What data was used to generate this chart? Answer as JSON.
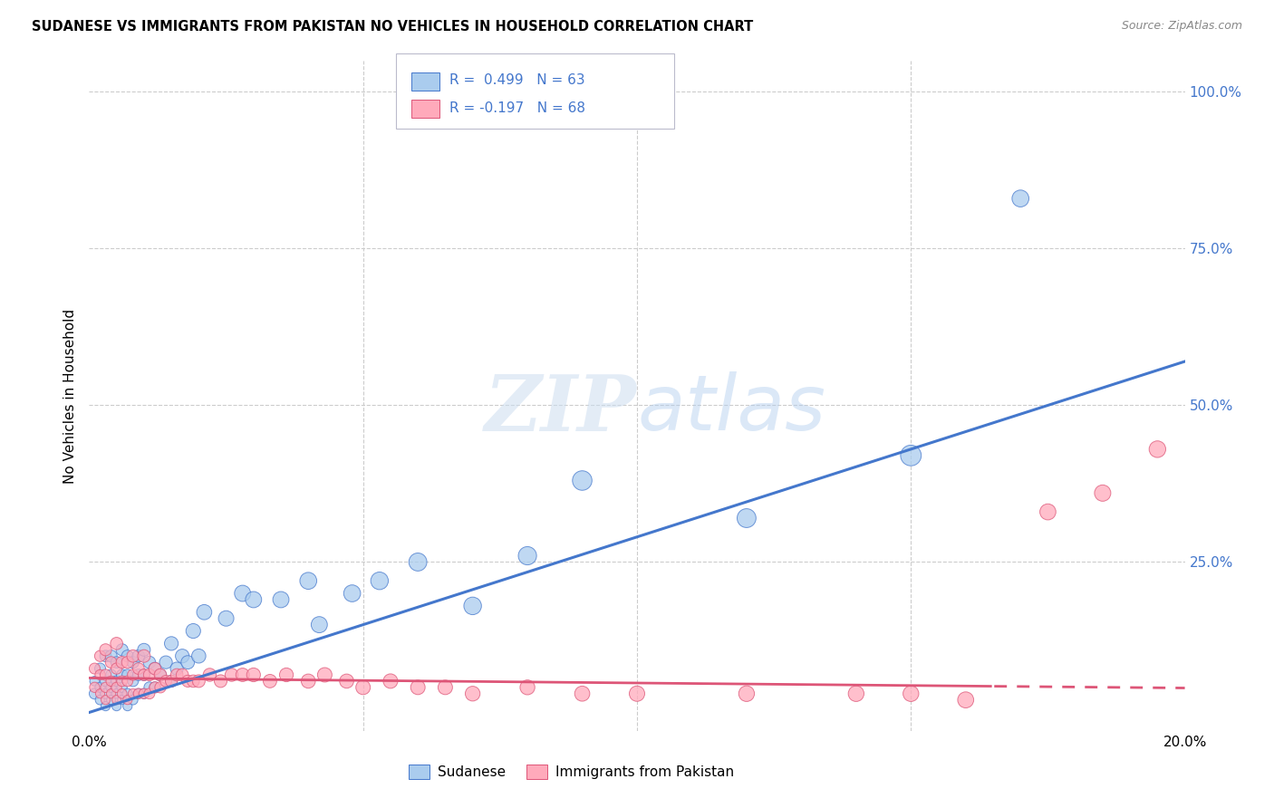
{
  "title": "SUDANESE VS IMMIGRANTS FROM PAKISTAN NO VEHICLES IN HOUSEHOLD CORRELATION CHART",
  "source": "Source: ZipAtlas.com",
  "ylabel": "No Vehicles in Household",
  "xlim": [
    0.0,
    0.2
  ],
  "ylim": [
    -0.02,
    1.05
  ],
  "grid_color": "#cccccc",
  "background_color": "#ffffff",
  "blue_color": "#aaccee",
  "blue_color_dark": "#4477cc",
  "pink_color": "#ffaabb",
  "pink_color_dark": "#dd5577",
  "series1_name": "Sudanese",
  "series2_name": "Immigrants from Pakistan",
  "blue_trend": [
    0.0015,
    0.499,
    63
  ],
  "pink_trend": [
    -0.0008,
    -0.197,
    68
  ],
  "sudanese_x": [
    0.001,
    0.001,
    0.002,
    0.002,
    0.002,
    0.003,
    0.003,
    0.003,
    0.003,
    0.004,
    0.004,
    0.004,
    0.004,
    0.005,
    0.005,
    0.005,
    0.005,
    0.006,
    0.006,
    0.006,
    0.006,
    0.007,
    0.007,
    0.007,
    0.007,
    0.008,
    0.008,
    0.008,
    0.009,
    0.009,
    0.009,
    0.01,
    0.01,
    0.01,
    0.011,
    0.011,
    0.012,
    0.012,
    0.013,
    0.014,
    0.015,
    0.015,
    0.016,
    0.017,
    0.018,
    0.019,
    0.02,
    0.021,
    0.025,
    0.028,
    0.03,
    0.035,
    0.04,
    0.042,
    0.048,
    0.053,
    0.06,
    0.07,
    0.08,
    0.09,
    0.12,
    0.15,
    0.17
  ],
  "sudanese_y": [
    0.04,
    0.06,
    0.03,
    0.05,
    0.08,
    0.02,
    0.04,
    0.06,
    0.1,
    0.03,
    0.05,
    0.07,
    0.1,
    0.02,
    0.04,
    0.06,
    0.09,
    0.03,
    0.05,
    0.07,
    0.11,
    0.02,
    0.04,
    0.07,
    0.1,
    0.03,
    0.06,
    0.09,
    0.04,
    0.07,
    0.1,
    0.04,
    0.07,
    0.11,
    0.05,
    0.09,
    0.05,
    0.08,
    0.07,
    0.09,
    0.06,
    0.12,
    0.08,
    0.1,
    0.09,
    0.14,
    0.1,
    0.17,
    0.16,
    0.2,
    0.19,
    0.19,
    0.22,
    0.15,
    0.2,
    0.22,
    0.25,
    0.18,
    0.26,
    0.38,
    0.32,
    0.42,
    0.83
  ],
  "sudanese_sizes": [
    25,
    20,
    20,
    22,
    25,
    18,
    22,
    25,
    28,
    18,
    22,
    25,
    30,
    18,
    20,
    24,
    28,
    18,
    22,
    26,
    30,
    18,
    22,
    26,
    30,
    20,
    25,
    30,
    22,
    28,
    32,
    22,
    28,
    34,
    25,
    32,
    25,
    32,
    30,
    35,
    30,
    40,
    35,
    40,
    38,
    45,
    42,
    48,
    50,
    55,
    55,
    55,
    60,
    55,
    60,
    65,
    68,
    65,
    70,
    80,
    75,
    90,
    60
  ],
  "pakistan_x": [
    0.001,
    0.001,
    0.002,
    0.002,
    0.002,
    0.003,
    0.003,
    0.003,
    0.003,
    0.004,
    0.004,
    0.004,
    0.005,
    0.005,
    0.005,
    0.005,
    0.006,
    0.006,
    0.006,
    0.007,
    0.007,
    0.007,
    0.008,
    0.008,
    0.008,
    0.009,
    0.009,
    0.01,
    0.01,
    0.01,
    0.011,
    0.011,
    0.012,
    0.012,
    0.013,
    0.013,
    0.014,
    0.015,
    0.016,
    0.017,
    0.018,
    0.019,
    0.02,
    0.022,
    0.024,
    0.026,
    0.028,
    0.03,
    0.033,
    0.036,
    0.04,
    0.043,
    0.047,
    0.05,
    0.055,
    0.06,
    0.065,
    0.07,
    0.08,
    0.09,
    0.1,
    0.12,
    0.14,
    0.15,
    0.16,
    0.175,
    0.185,
    0.195
  ],
  "pakistan_y": [
    0.05,
    0.08,
    0.04,
    0.07,
    0.1,
    0.03,
    0.05,
    0.07,
    0.11,
    0.04,
    0.06,
    0.09,
    0.03,
    0.05,
    0.08,
    0.12,
    0.04,
    0.06,
    0.09,
    0.03,
    0.06,
    0.09,
    0.04,
    0.07,
    0.1,
    0.04,
    0.08,
    0.04,
    0.07,
    0.1,
    0.04,
    0.07,
    0.05,
    0.08,
    0.05,
    0.07,
    0.06,
    0.06,
    0.07,
    0.07,
    0.06,
    0.06,
    0.06,
    0.07,
    0.06,
    0.07,
    0.07,
    0.07,
    0.06,
    0.07,
    0.06,
    0.07,
    0.06,
    0.05,
    0.06,
    0.05,
    0.05,
    0.04,
    0.05,
    0.04,
    0.04,
    0.04,
    0.04,
    0.04,
    0.03,
    0.33,
    0.36,
    0.43
  ],
  "pakistan_sizes": [
    22,
    25,
    18,
    22,
    26,
    18,
    22,
    26,
    30,
    18,
    22,
    28,
    18,
    22,
    26,
    32,
    20,
    24,
    30,
    18,
    24,
    30,
    20,
    26,
    32,
    22,
    28,
    22,
    28,
    34,
    24,
    30,
    26,
    32,
    26,
    32,
    28,
    30,
    32,
    32,
    30,
    32,
    34,
    36,
    34,
    36,
    38,
    40,
    38,
    40,
    42,
    44,
    42,
    44,
    44,
    44,
    44,
    46,
    46,
    48,
    50,
    52,
    52,
    52,
    54,
    54,
    56,
    58
  ],
  "blue_line_slope": 2.8,
  "blue_line_intercept": 0.01,
  "pink_line_slope": -0.08,
  "pink_line_intercept": 0.065
}
